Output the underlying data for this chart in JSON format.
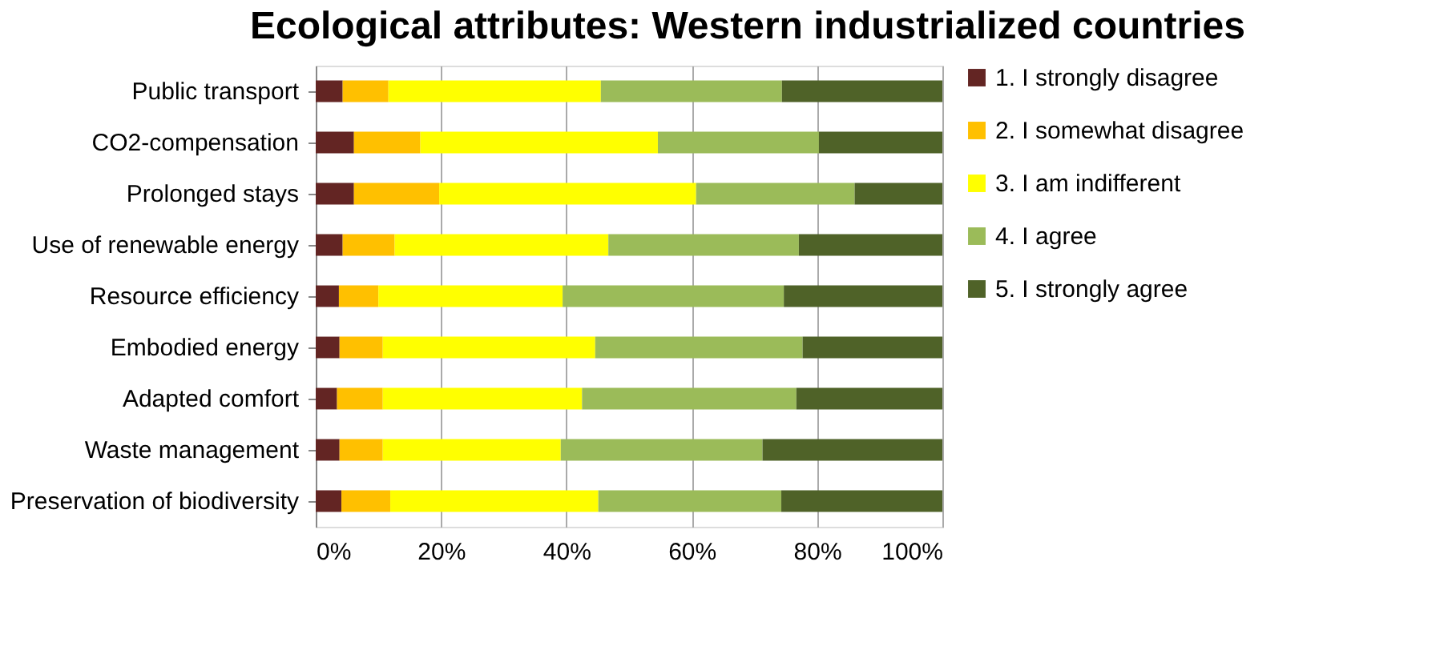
{
  "chart_data": {
    "type": "bar",
    "title": "Ecological attributes: Western industrialized countries",
    "orientation": "horizontal",
    "stacked": true,
    "categories": [
      "Public transport",
      "CO2-compensation",
      "Prolonged stays",
      "Use of renewable energy",
      "Resource efficiency",
      "Embodied energy",
      "Adapted comfort",
      "Waste management",
      "Preservation of biodiversity"
    ],
    "series": [
      {
        "name": "1. I strongly disagree",
        "color": "#632523",
        "values": [
          4.3,
          6.1,
          6.1,
          4.3,
          3.7,
          3.8,
          3.4,
          3.8,
          4.1
        ]
      },
      {
        "name": "2. I somewhat disagree",
        "color": "#ffc000",
        "values": [
          7.3,
          10.6,
          13.6,
          8.3,
          6.3,
          6.9,
          7.3,
          6.9,
          7.8
        ]
      },
      {
        "name": "3. I am indifferent",
        "color": "#ffff00",
        "values": [
          33.9,
          37.9,
          41.0,
          34.1,
          29.4,
          33.9,
          31.8,
          28.4,
          33.2
        ]
      },
      {
        "name": "4. I agree",
        "color": "#9bbb59",
        "values": [
          28.9,
          25.7,
          25.3,
          30.4,
          35.3,
          33.1,
          34.2,
          32.2,
          29.2
        ]
      },
      {
        "name": "5. I strongly agree",
        "color": "#4f6228",
        "values": [
          25.6,
          19.7,
          14.0,
          22.9,
          25.3,
          22.3,
          23.3,
          28.7,
          25.7
        ]
      }
    ],
    "xlim": [
      0,
      100
    ],
    "xticks": [
      {
        "value": 0,
        "label": "0%"
      },
      {
        "value": 20,
        "label": "20%"
      },
      {
        "value": 40,
        "label": "40%"
      },
      {
        "value": 60,
        "label": "60%"
      },
      {
        "value": 80,
        "label": "80%"
      },
      {
        "value": 100,
        "label": "100%"
      }
    ],
    "grid": "x",
    "legend": "right"
  }
}
